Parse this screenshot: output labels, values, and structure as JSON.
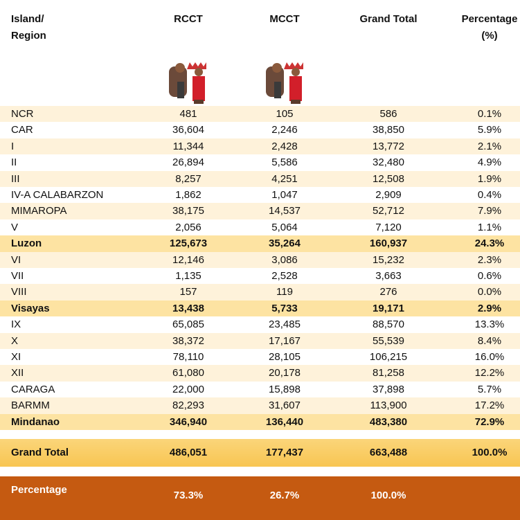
{
  "table": {
    "header": [
      "Island/\nRegion",
      "RCCT",
      "MCCT",
      "Grand Total",
      "Percentage\n(%)"
    ],
    "rows": [
      [
        "NCR",
        "481",
        "105",
        "586",
        "0.1%"
      ],
      [
        "CAR",
        "36,604",
        "2,246",
        "38,850",
        "5.9%"
      ],
      [
        "I",
        "11,344",
        "2,428",
        "13,772",
        "2.1%"
      ],
      [
        "II",
        "26,894",
        "5,586",
        "32,480",
        "4.9%"
      ],
      [
        "III",
        "8,257",
        "4,251",
        "12,508",
        "1.9%"
      ],
      [
        "IV-A CALABARZON",
        "1,862",
        "1,047",
        "2,909",
        "0.4%"
      ],
      [
        "MIMAROPA",
        "38,175",
        "14,537",
        "52,712",
        "7.9%"
      ],
      [
        "V",
        "2,056",
        "5,064",
        "7,120",
        "1.1%"
      ],
      [
        "Luzon",
        "125,673",
        "35,264",
        "160,937",
        "24.3%"
      ],
      [
        "VI",
        "12,146",
        "3,086",
        "15,232",
        "2.3%"
      ],
      [
        "VII",
        "1,135",
        "2,528",
        "3,663",
        "0.6%"
      ],
      [
        "VIII",
        "157",
        "119",
        "276",
        "0.0%"
      ],
      [
        "Visayas",
        "13,438",
        "5,733",
        "19,171",
        "2.9%"
      ],
      [
        "IX",
        "65,085",
        "23,485",
        "88,570",
        "13.3%"
      ],
      [
        "X",
        "38,372",
        "17,167",
        "55,539",
        "8.4%"
      ],
      [
        "XI",
        "78,110",
        "28,105",
        "106,215",
        "16.0%"
      ],
      [
        "XII",
        "61,080",
        "20,178",
        "81,258",
        "12.2%"
      ],
      [
        "CARAGA",
        "22,000",
        "15,898",
        "37,898",
        "5.7%"
      ],
      [
        "BARMM",
        "82,293",
        "31,607",
        "113,900",
        "17.2%"
      ],
      [
        "Mindanao",
        "346,940",
        "136,440",
        "483,380",
        "72.9%"
      ]
    ],
    "grand_total": [
      "Grand Total",
      "486,051",
      "177,437",
      "663,488",
      "100.0%"
    ],
    "percentage": [
      "Percentage",
      "73.3%",
      "26.7%",
      "100.0%"
    ]
  }
}
